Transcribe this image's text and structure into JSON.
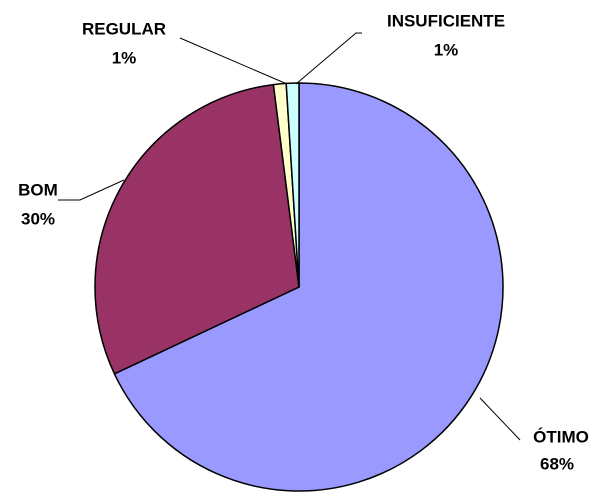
{
  "chart_data": {
    "type": "pie",
    "categories": [
      "ÓTIMO",
      "BOM",
      "REGULAR",
      "INSUFICIENTE"
    ],
    "values": [
      68,
      30,
      1,
      1
    ],
    "value_labels": [
      "68%",
      "30%",
      "1%",
      "1%"
    ],
    "colors": [
      "#9999ff",
      "#993366",
      "#ffffcc",
      "#ccffff"
    ]
  }
}
